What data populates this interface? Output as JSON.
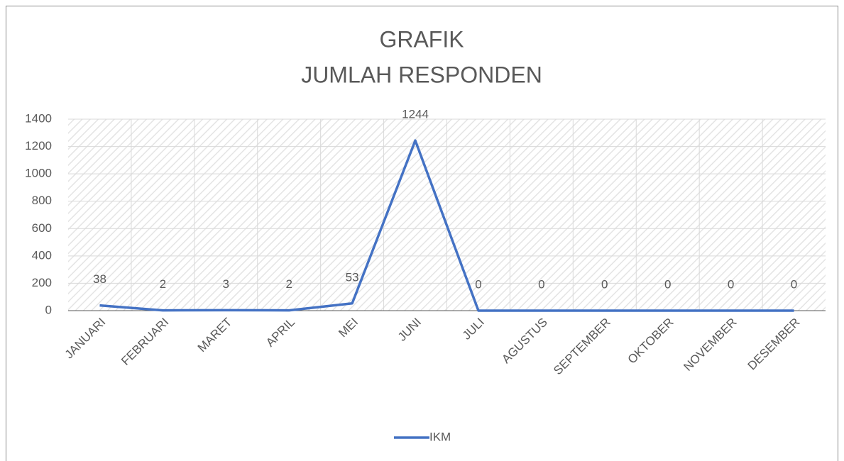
{
  "chart_data": {
    "type": "line",
    "title": "GRAFIK",
    "subtitle": "JUMLAH RESPONDEN",
    "categories": [
      "JANUARI",
      "FEBRUARI",
      "MARET",
      "APRIL",
      "MEI",
      "JUNI",
      "JULI",
      "AGUSTUS",
      "SEPTEMBER",
      "OKTOBER",
      "NOVEMBER",
      "DESEMBER"
    ],
    "series": [
      {
        "name": "IKM",
        "color": "#4472c4",
        "values": [
          38,
          2,
          3,
          2,
          53,
          1244,
          0,
          0,
          0,
          0,
          0,
          0
        ]
      }
    ],
    "ylim": [
      0,
      1400
    ],
    "yticks": [
      0,
      200,
      400,
      600,
      800,
      1000,
      1200,
      1400
    ],
    "grid": true,
    "legend": "bottom"
  }
}
